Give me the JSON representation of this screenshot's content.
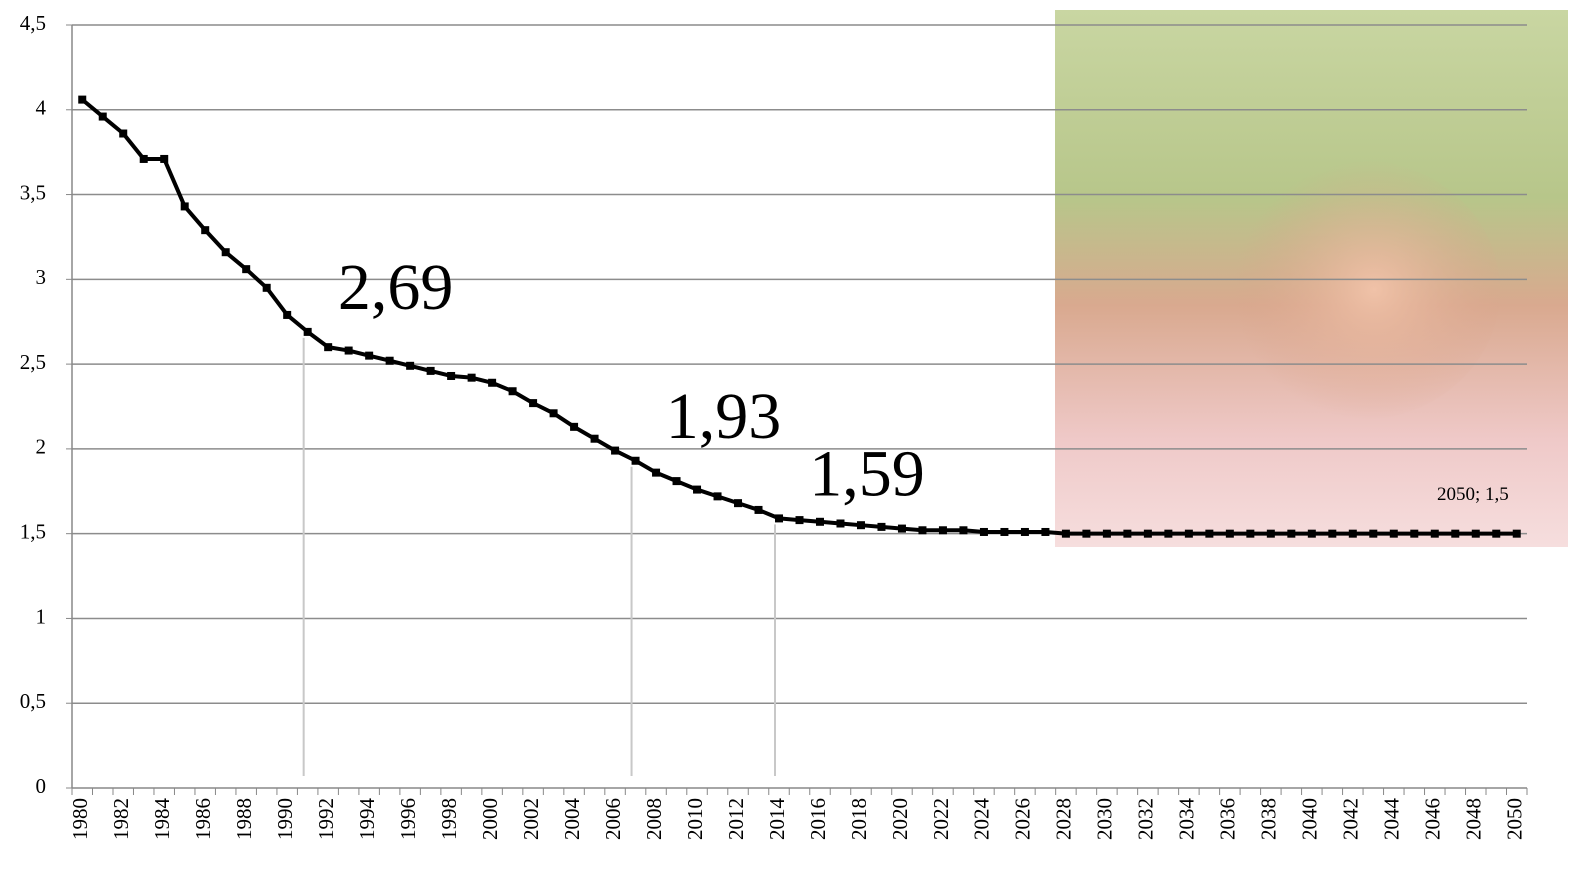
{
  "chart_data": {
    "type": "line",
    "categories": [
      "1980",
      null,
      "1982",
      null,
      "1984",
      null,
      "1986",
      null,
      "1988",
      null,
      "1990",
      null,
      "1992",
      null,
      "1994",
      null,
      "1996",
      null,
      "1998",
      null,
      "2000",
      null,
      "2002",
      null,
      "2004",
      null,
      "2006",
      null,
      "2008",
      null,
      "2010",
      null,
      "2012",
      null,
      "2014",
      null,
      "2016",
      null,
      "2018",
      null,
      "2020",
      null,
      "2022",
      null,
      "2024",
      null,
      "2026",
      null,
      "2028",
      null,
      "2030",
      null,
      "2032",
      null,
      "2034",
      null,
      "2036",
      null,
      "2038",
      null,
      "2040",
      null,
      "2042",
      null,
      "2044",
      null,
      "2046",
      null,
      "2048",
      null,
      "2050"
    ],
    "values": [
      4.06,
      3.96,
      3.86,
      3.71,
      3.71,
      3.43,
      3.29,
      3.16,
      3.06,
      2.95,
      2.79,
      2.69,
      2.6,
      2.58,
      2.55,
      2.52,
      2.49,
      2.46,
      2.43,
      2.42,
      2.39,
      2.34,
      2.27,
      2.21,
      2.13,
      2.06,
      1.99,
      1.93,
      1.86,
      1.81,
      1.76,
      1.72,
      1.68,
      1.64,
      1.59,
      1.58,
      1.57,
      1.56,
      1.55,
      1.54,
      1.53,
      1.52,
      1.52,
      1.52,
      1.51,
      1.51,
      1.51,
      1.51,
      1.5,
      1.5,
      1.5,
      1.5,
      1.5,
      1.5,
      1.5,
      1.5,
      1.5,
      1.5,
      1.5,
      1.5,
      1.5,
      1.5,
      1.5,
      1.5,
      1.5,
      1.5,
      1.5,
      1.5,
      1.5,
      1.5,
      1.5
    ],
    "value_labels": [
      null,
      null,
      null,
      null,
      null,
      null,
      null,
      null,
      null,
      null,
      null,
      "2,69",
      null,
      null,
      null,
      null,
      null,
      null,
      null,
      null,
      null,
      null,
      null,
      null,
      null,
      null,
      null,
      "1,93",
      null,
      null,
      null,
      null,
      null,
      null,
      "1,59",
      null,
      null,
      null,
      null,
      null,
      null,
      null,
      null,
      null,
      null,
      null,
      null,
      null,
      null,
      null,
      null,
      null,
      null,
      null,
      null,
      null,
      null,
      null,
      null,
      null,
      null,
      null,
      null,
      null,
      null,
      null,
      null,
      null,
      null,
      null,
      "2050; 1,5"
    ],
    "color": "#000000",
    "ylim": [
      0,
      4.5
    ],
    "yticks": [
      0,
      {
        "value": 0.5,
        "label": "0,5"
      },
      1,
      {
        "value": 1.5,
        "label": "1,5"
      },
      2,
      {
        "value": 2.5,
        "label": "2,5"
      },
      3,
      {
        "value": 3.5,
        "label": "3,5"
      },
      4,
      {
        "value": 4.5,
        "label": "4,5"
      }
    ],
    "grid": true
  }
}
